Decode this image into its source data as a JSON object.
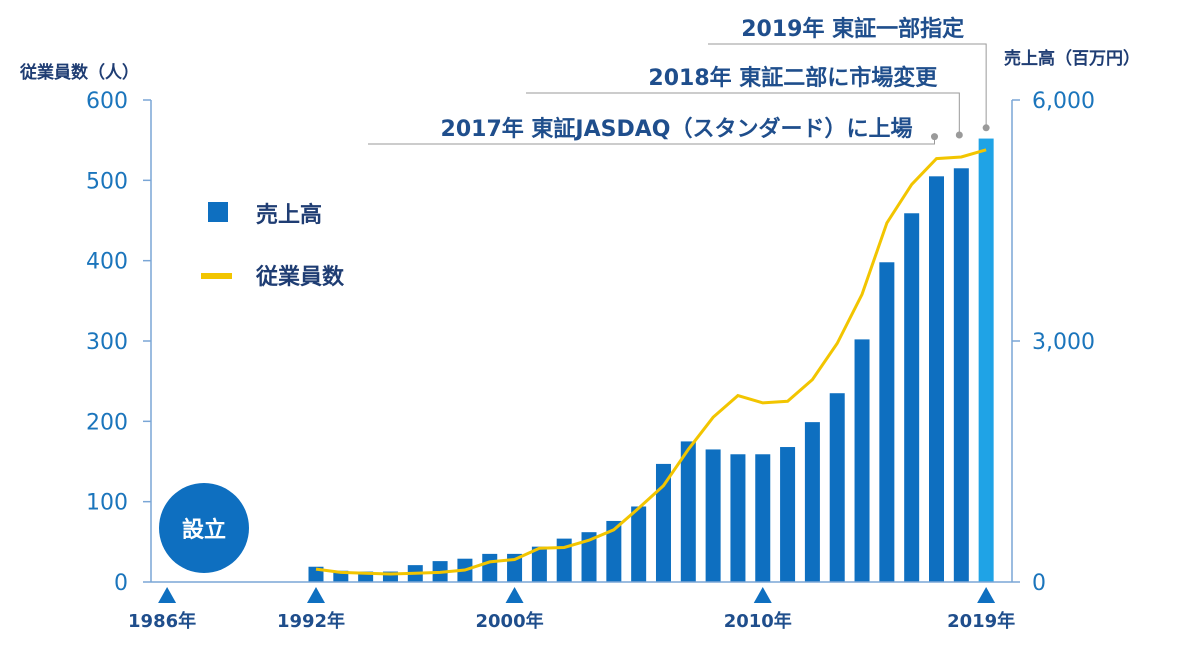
{
  "chart_data": {
    "type": "bar+line",
    "left_axis": {
      "title": "従業員数（人）",
      "ylim": [
        0,
        600
      ],
      "ticks": [
        "0",
        "100",
        "200",
        "300",
        "400",
        "500",
        "600"
      ]
    },
    "right_axis": {
      "title": "売上高（百万円）",
      "ylim": [
        0,
        6000
      ],
      "ticks": [
        "0",
        "3,000",
        "6,000"
      ]
    },
    "x_labels": [
      "1986年",
      "1992年",
      "2000年",
      "2010年",
      "2019年"
    ],
    "x_label_years": [
      1986,
      1992,
      2000,
      2010,
      2019
    ],
    "years": [
      1992,
      1993,
      1994,
      1995,
      1996,
      1997,
      1998,
      1999,
      2000,
      2001,
      2002,
      2003,
      2004,
      2005,
      2006,
      2007,
      2008,
      2009,
      2010,
      2011,
      2012,
      2013,
      2014,
      2015,
      2016,
      2017,
      2018,
      2019
    ],
    "series": [
      {
        "name": "売上高",
        "type": "bar",
        "axis": "right",
        "color": "#0e6fc0",
        "highlight_color": "#1fa3e6",
        "highlight_year": 2019,
        "values": [
          190,
          140,
          130,
          130,
          210,
          260,
          290,
          350,
          350,
          440,
          540,
          620,
          760,
          940,
          1470,
          1750,
          1650,
          1590,
          1590,
          1680,
          1990,
          2350,
          3020,
          3980,
          4590,
          5050,
          5150,
          5520
        ]
      },
      {
        "name": "従業員数",
        "type": "line",
        "axis": "left",
        "color": "#f2c500",
        "values": [
          16,
          12,
          11,
          10,
          11,
          12,
          15,
          25,
          28,
          42,
          43,
          52,
          65,
          92,
          120,
          165,
          205,
          232,
          223,
          225,
          252,
          297,
          358,
          447,
          495,
          527,
          529,
          538
        ]
      }
    ],
    "events": [
      {
        "label": "2017年  東証JASDAQ（スタンダード）に上場",
        "year": 2017
      },
      {
        "label": "2018年  東証二部に市場変更",
        "year": 2018
      },
      {
        "label": "2019年  東証一部指定",
        "year": 2019
      }
    ],
    "founded": {
      "label": "設立",
      "year": 1986
    }
  }
}
